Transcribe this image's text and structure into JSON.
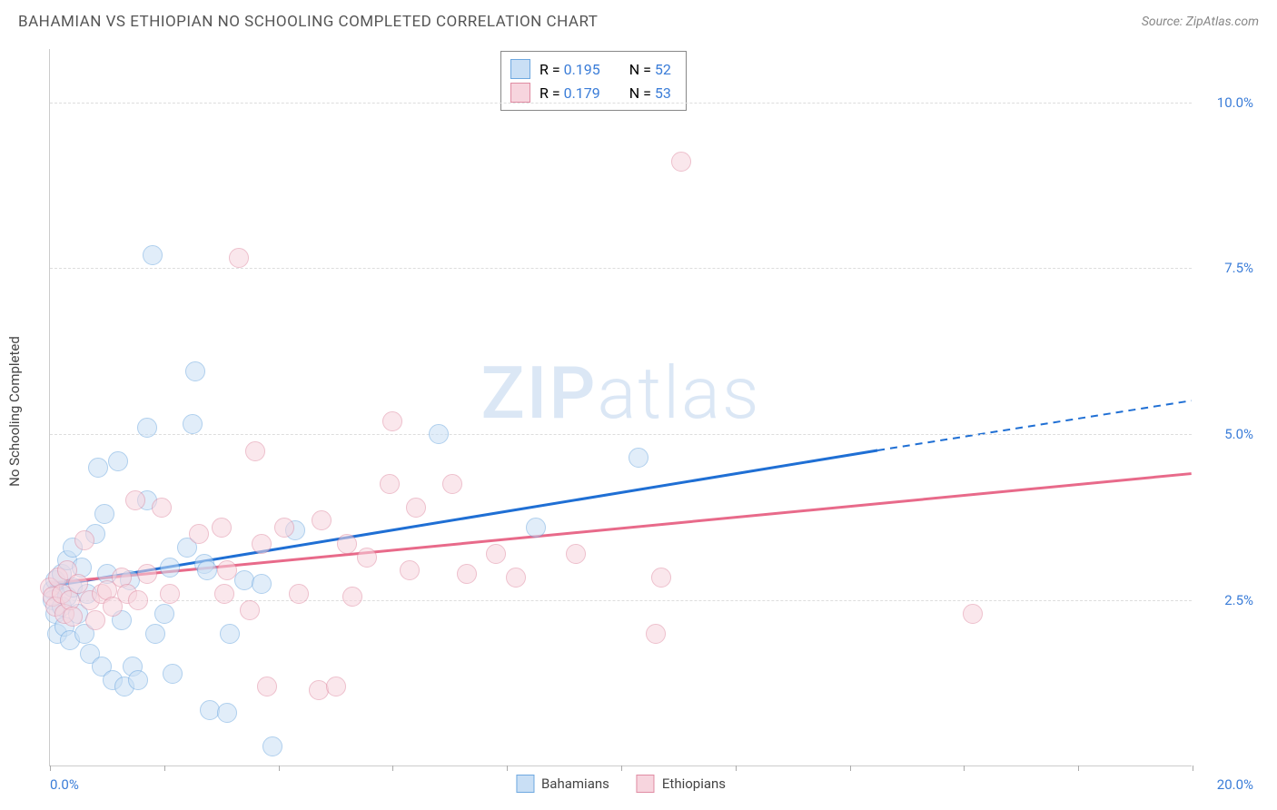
{
  "title": "BAHAMIAN VS ETHIOPIAN NO SCHOOLING COMPLETED CORRELATION CHART",
  "source": "Source: ZipAtlas.com",
  "watermark": "ZIPatlas",
  "y_axis_title": "No Schooling Completed",
  "chart": {
    "type": "scatter",
    "xlim": [
      0,
      20
    ],
    "ylim": [
      0,
      10.8
    ],
    "x_ticks": [
      0,
      2,
      4,
      6,
      8,
      10,
      12,
      14,
      16,
      18,
      20
    ],
    "y_gridlines": [
      {
        "v": 2.5,
        "label": "2.5%",
        "color": "#3b7dd8"
      },
      {
        "v": 5.0,
        "label": "5.0%",
        "color": "#3b7dd8"
      },
      {
        "v": 7.5,
        "label": "7.5%",
        "color": "#3b7dd8"
      },
      {
        "v": 10.0,
        "label": "10.0%",
        "color": "#3b7dd8"
      }
    ],
    "x_label_min": "0.0%",
    "x_label_max": "20.0%",
    "background_color": "#ffffff",
    "grid_color": "#dddddd",
    "axis_color": "#cccccc",
    "marker_radius": 11,
    "marker_stroke": 1.5,
    "series": [
      {
        "name": "Bahamians",
        "fill": "#c9dff5",
        "stroke": "#6ea8e0",
        "fill_opacity": 0.55,
        "trend": {
          "x1": 0,
          "y1": 2.7,
          "x2_solid": 14.5,
          "y2_solid": 4.75,
          "x2": 20,
          "y2": 5.5,
          "color": "#1f6fd4",
          "width": 3
        },
        "stats": {
          "R": "0.195",
          "N": "52"
        },
        "points": [
          [
            0.05,
            2.65
          ],
          [
            0.05,
            2.5
          ],
          [
            0.1,
            2.8
          ],
          [
            0.1,
            2.3
          ],
          [
            0.12,
            2.0
          ],
          [
            0.2,
            2.9
          ],
          [
            0.2,
            2.4
          ],
          [
            0.25,
            2.1
          ],
          [
            0.3,
            3.1
          ],
          [
            0.3,
            2.55
          ],
          [
            0.35,
            1.9
          ],
          [
            0.4,
            3.3
          ],
          [
            0.4,
            2.7
          ],
          [
            0.5,
            2.3
          ],
          [
            0.55,
            3.0
          ],
          [
            0.6,
            2.0
          ],
          [
            0.65,
            2.6
          ],
          [
            0.7,
            1.7
          ],
          [
            0.8,
            3.5
          ],
          [
            0.85,
            4.5
          ],
          [
            0.9,
            1.5
          ],
          [
            0.95,
            3.8
          ],
          [
            1.0,
            2.9
          ],
          [
            1.1,
            1.3
          ],
          [
            1.2,
            4.6
          ],
          [
            1.25,
            2.2
          ],
          [
            1.3,
            1.2
          ],
          [
            1.4,
            2.8
          ],
          [
            1.45,
            1.5
          ],
          [
            1.55,
            1.3
          ],
          [
            1.7,
            5.1
          ],
          [
            1.7,
            4.0
          ],
          [
            1.8,
            7.7
          ],
          [
            1.85,
            2.0
          ],
          [
            2.0,
            2.3
          ],
          [
            2.1,
            3.0
          ],
          [
            2.15,
            1.4
          ],
          [
            2.4,
            3.3
          ],
          [
            2.5,
            5.15
          ],
          [
            2.55,
            5.95
          ],
          [
            2.7,
            3.05
          ],
          [
            2.75,
            2.95
          ],
          [
            2.8,
            0.85
          ],
          [
            3.1,
            0.8
          ],
          [
            3.15,
            2.0
          ],
          [
            3.4,
            2.8
          ],
          [
            3.7,
            2.75
          ],
          [
            3.9,
            0.3
          ],
          [
            4.3,
            3.55
          ],
          [
            6.8,
            5.0
          ],
          [
            8.5,
            3.6
          ],
          [
            10.3,
            4.65
          ]
        ]
      },
      {
        "name": "Ethiopians",
        "fill": "#f7d5de",
        "stroke": "#e08ca3",
        "fill_opacity": 0.55,
        "trend": {
          "x1": 0,
          "y1": 2.75,
          "x2_solid": 20,
          "y2_solid": 4.4,
          "x2": 20,
          "y2": 4.4,
          "color": "#e86a8a",
          "width": 3
        },
        "stats": {
          "R": "0.179",
          "N": "53"
        },
        "points": [
          [
            0.0,
            2.7
          ],
          [
            0.05,
            2.55
          ],
          [
            0.1,
            2.4
          ],
          [
            0.15,
            2.85
          ],
          [
            0.2,
            2.6
          ],
          [
            0.25,
            2.3
          ],
          [
            0.3,
            2.95
          ],
          [
            0.35,
            2.5
          ],
          [
            0.4,
            2.25
          ],
          [
            0.5,
            2.75
          ],
          [
            0.6,
            3.4
          ],
          [
            0.7,
            2.5
          ],
          [
            0.8,
            2.2
          ],
          [
            0.9,
            2.6
          ],
          [
            1.0,
            2.65
          ],
          [
            1.1,
            2.4
          ],
          [
            1.25,
            2.85
          ],
          [
            1.35,
            2.6
          ],
          [
            1.5,
            4.0
          ],
          [
            1.55,
            2.5
          ],
          [
            1.7,
            2.9
          ],
          [
            1.95,
            3.9
          ],
          [
            2.1,
            2.6
          ],
          [
            2.6,
            3.5
          ],
          [
            3.0,
            3.6
          ],
          [
            3.05,
            2.6
          ],
          [
            3.1,
            2.95
          ],
          [
            3.3,
            7.65
          ],
          [
            3.5,
            2.35
          ],
          [
            3.6,
            4.75
          ],
          [
            3.7,
            3.35
          ],
          [
            3.8,
            1.2
          ],
          [
            4.1,
            3.6
          ],
          [
            4.35,
            2.6
          ],
          [
            4.7,
            1.15
          ],
          [
            4.75,
            3.7
          ],
          [
            5.0,
            1.2
          ],
          [
            5.2,
            3.35
          ],
          [
            5.3,
            2.55
          ],
          [
            5.55,
            3.15
          ],
          [
            5.95,
            4.25
          ],
          [
            6.0,
            5.2
          ],
          [
            6.3,
            2.95
          ],
          [
            6.4,
            3.9
          ],
          [
            7.05,
            4.25
          ],
          [
            7.3,
            2.9
          ],
          [
            7.8,
            3.2
          ],
          [
            8.15,
            2.85
          ],
          [
            9.2,
            3.2
          ],
          [
            10.6,
            2.0
          ],
          [
            10.7,
            2.85
          ],
          [
            11.05,
            9.1
          ],
          [
            16.15,
            2.3
          ]
        ]
      }
    ],
    "legend_bottom": [
      {
        "label": "Bahamians",
        "fill": "#c9dff5",
        "stroke": "#6ea8e0"
      },
      {
        "label": "Ethiopians",
        "fill": "#f7d5de",
        "stroke": "#e08ca3"
      }
    ]
  }
}
